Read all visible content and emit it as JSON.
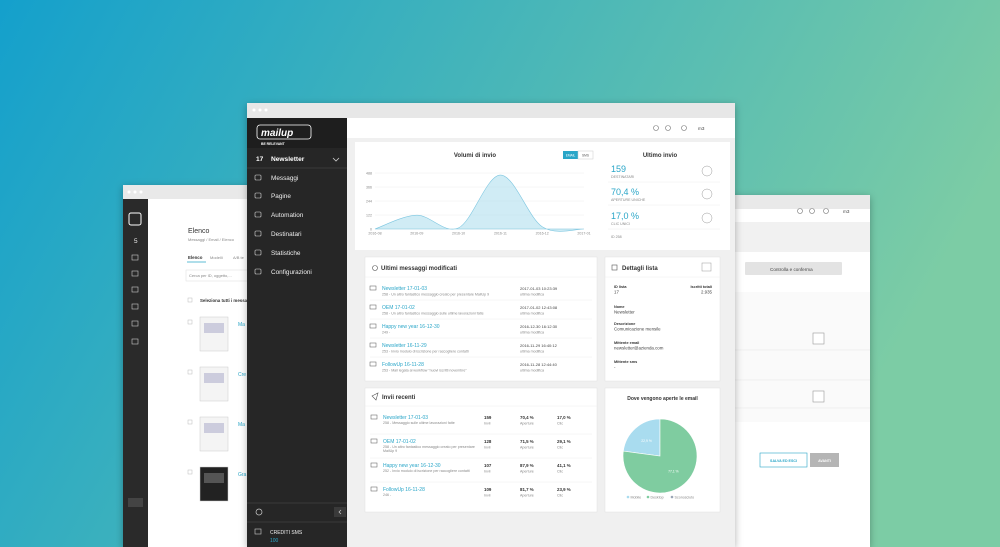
{
  "back_left": {
    "title": "Elenco",
    "breadcrumb": "Messaggi / Email / Elenco",
    "tabs": [
      "Elenco",
      "Modelli",
      "A/B te"
    ],
    "search_placeholder": "Cerca per ID, oggetto,...",
    "select_all": "Seleziona tutti i messaggi",
    "sidebar_badge": "5",
    "items": [
      "Ma",
      "Cre",
      "Ma",
      "Gra"
    ]
  },
  "back_right": {
    "user": "m3",
    "step": "Controlla e conferma",
    "buttons": [
      "SALVA ED ESCI",
      "AVANTI"
    ]
  },
  "sidebar": {
    "logo": "mailup",
    "tagline": "BE RELEVANT",
    "list_id": "17",
    "list_name": "Newsletter",
    "menu": [
      "Messaggi",
      "Pagine",
      "Automation",
      "Destinatari",
      "Statistiche",
      "Configurazioni"
    ],
    "credits_label": "CREDITI SMS",
    "credits_value": "100"
  },
  "topbar": {
    "user": "m3"
  },
  "volume_chart": {
    "type": "area",
    "title": "Volumi di invio",
    "toggle": [
      "EMAIL",
      "SMS"
    ],
    "categories": [
      "2016-08",
      "2016-09",
      "2016-10",
      "2016-11",
      "2016-12",
      "2017-01"
    ],
    "values": [
      0,
      120,
      10,
      470,
      20,
      0
    ],
    "ylim": [
      0,
      488
    ],
    "yticks": [
      0,
      122,
      244,
      366,
      488
    ],
    "color": "#a9dcec"
  },
  "last_send": {
    "title": "Ultimo invio",
    "stats": [
      {
        "value": "159",
        "label": "DESTINATARI"
      },
      {
        "value": "70,4 %",
        "label": "APERTURE UNICHE"
      },
      {
        "value": "17,0 %",
        "label": "CLIC UNICI"
      }
    ],
    "id": "ID 258"
  },
  "recent_edits": {
    "title": "Ultimi messaggi modificati",
    "rows": [
      {
        "name": "Newsletter 17-01-03",
        "description": "258 - Un altro fantastico messaggio creato per presentare MailUp 9",
        "date": "2017-01-03 10:23:39",
        "date_label": "ultima modifica"
      },
      {
        "name": "OEM 17-01-02",
        "description": "258 - Un altro fantastico messaggio sulle ultime lavorazioni fatte",
        "date": "2017-01-02 12:43:08",
        "date_label": "ultima modifica"
      },
      {
        "name": "Happy new year 16-12-30",
        "description": "249 -",
        "date": "2016-12-30 16:12:30",
        "date_label": "ultima modifica"
      },
      {
        "name": "Newsletter 16-11-29",
        "description": "253 - Invio modulo di iscrizione per raccogliere contatti",
        "date": "2016-11-29 16:40:12",
        "date_label": "ultima modifica"
      },
      {
        "name": "FollowUp 16-11-28",
        "description": "253 - Mail legata al workflow \"nuovi iscritti novembre\"",
        "date": "2016-11-28 12:44:40",
        "date_label": "ultima modifica"
      }
    ]
  },
  "list_details": {
    "title": "Dettagli lista",
    "fields": [
      {
        "label": "ID lista",
        "value": "17"
      },
      {
        "label": "Iscritti totali",
        "value": "2.935"
      },
      {
        "label": "Nome",
        "value": "Newsletter"
      },
      {
        "label": "Descrizione",
        "value": "Comunicazione mensile"
      },
      {
        "label": "Mittente email",
        "value": "newsletter@azienda.com"
      },
      {
        "label": "Mittente sms",
        "value": "-"
      }
    ]
  },
  "recent_sends": {
    "title": "Invii recenti",
    "columns": [
      "Invii",
      "Aperture",
      "Clic"
    ],
    "rows": [
      {
        "name": "Newsletter 17-01-03",
        "description": "258 - Messaggio sulle ultime lavorazioni fatte",
        "sends": "159",
        "opens": "70,4 %",
        "clicks": "17,0 %"
      },
      {
        "name": "OEM 17-01-02",
        "description": "258 - Un altro fantastico messaggio creato per presentare MailUp 9",
        "sends": "128",
        "opens": "71,5 %",
        "clicks": "29,1 %"
      },
      {
        "name": "Happy new year 16-12-30",
        "description": "252 - Invio modulo di iscrizione per raccogliere contatti",
        "sends": "107",
        "opens": "87,9 %",
        "clicks": "41,1 %"
      },
      {
        "name": "FollowUp 16-11-28",
        "description": "246 -",
        "sends": "109",
        "opens": "81,7 %",
        "clicks": "23,9 %"
      }
    ]
  },
  "open_chart": {
    "type": "pie",
    "title": "Dove vengono aperte le email",
    "categories": [
      "Mobile",
      "Desktop",
      "Sconosciuto"
    ],
    "values": [
      22.9,
      77.1,
      0
    ],
    "value_labels": [
      "22,9 %",
      "77,1 %",
      null
    ],
    "colors": [
      "#a9dcef",
      "#7fcca0",
      "#9aa5b5"
    ]
  }
}
